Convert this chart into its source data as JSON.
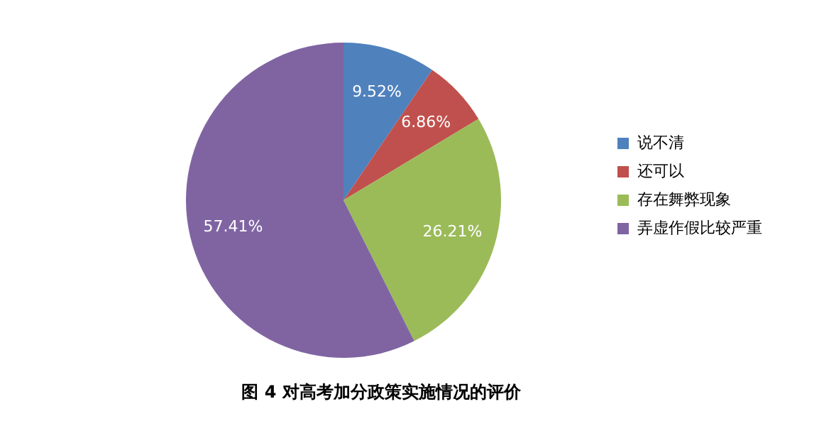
{
  "chart_data": {
    "type": "pie",
    "title": "图 4 对高考加分政策实施情况的评价",
    "categories": [
      "说不清",
      "还可以",
      "存在舞弊现象",
      "弄虚作假比较严重"
    ],
    "values": [
      9.52,
      6.86,
      26.21,
      57.41
    ],
    "colors": [
      "#4f81bd",
      "#c0504d",
      "#9bbb59",
      "#8064a2"
    ],
    "value_labels": [
      "9.52%",
      "6.86%",
      "26.21%",
      "57.41%"
    ],
    "legend": "right"
  }
}
